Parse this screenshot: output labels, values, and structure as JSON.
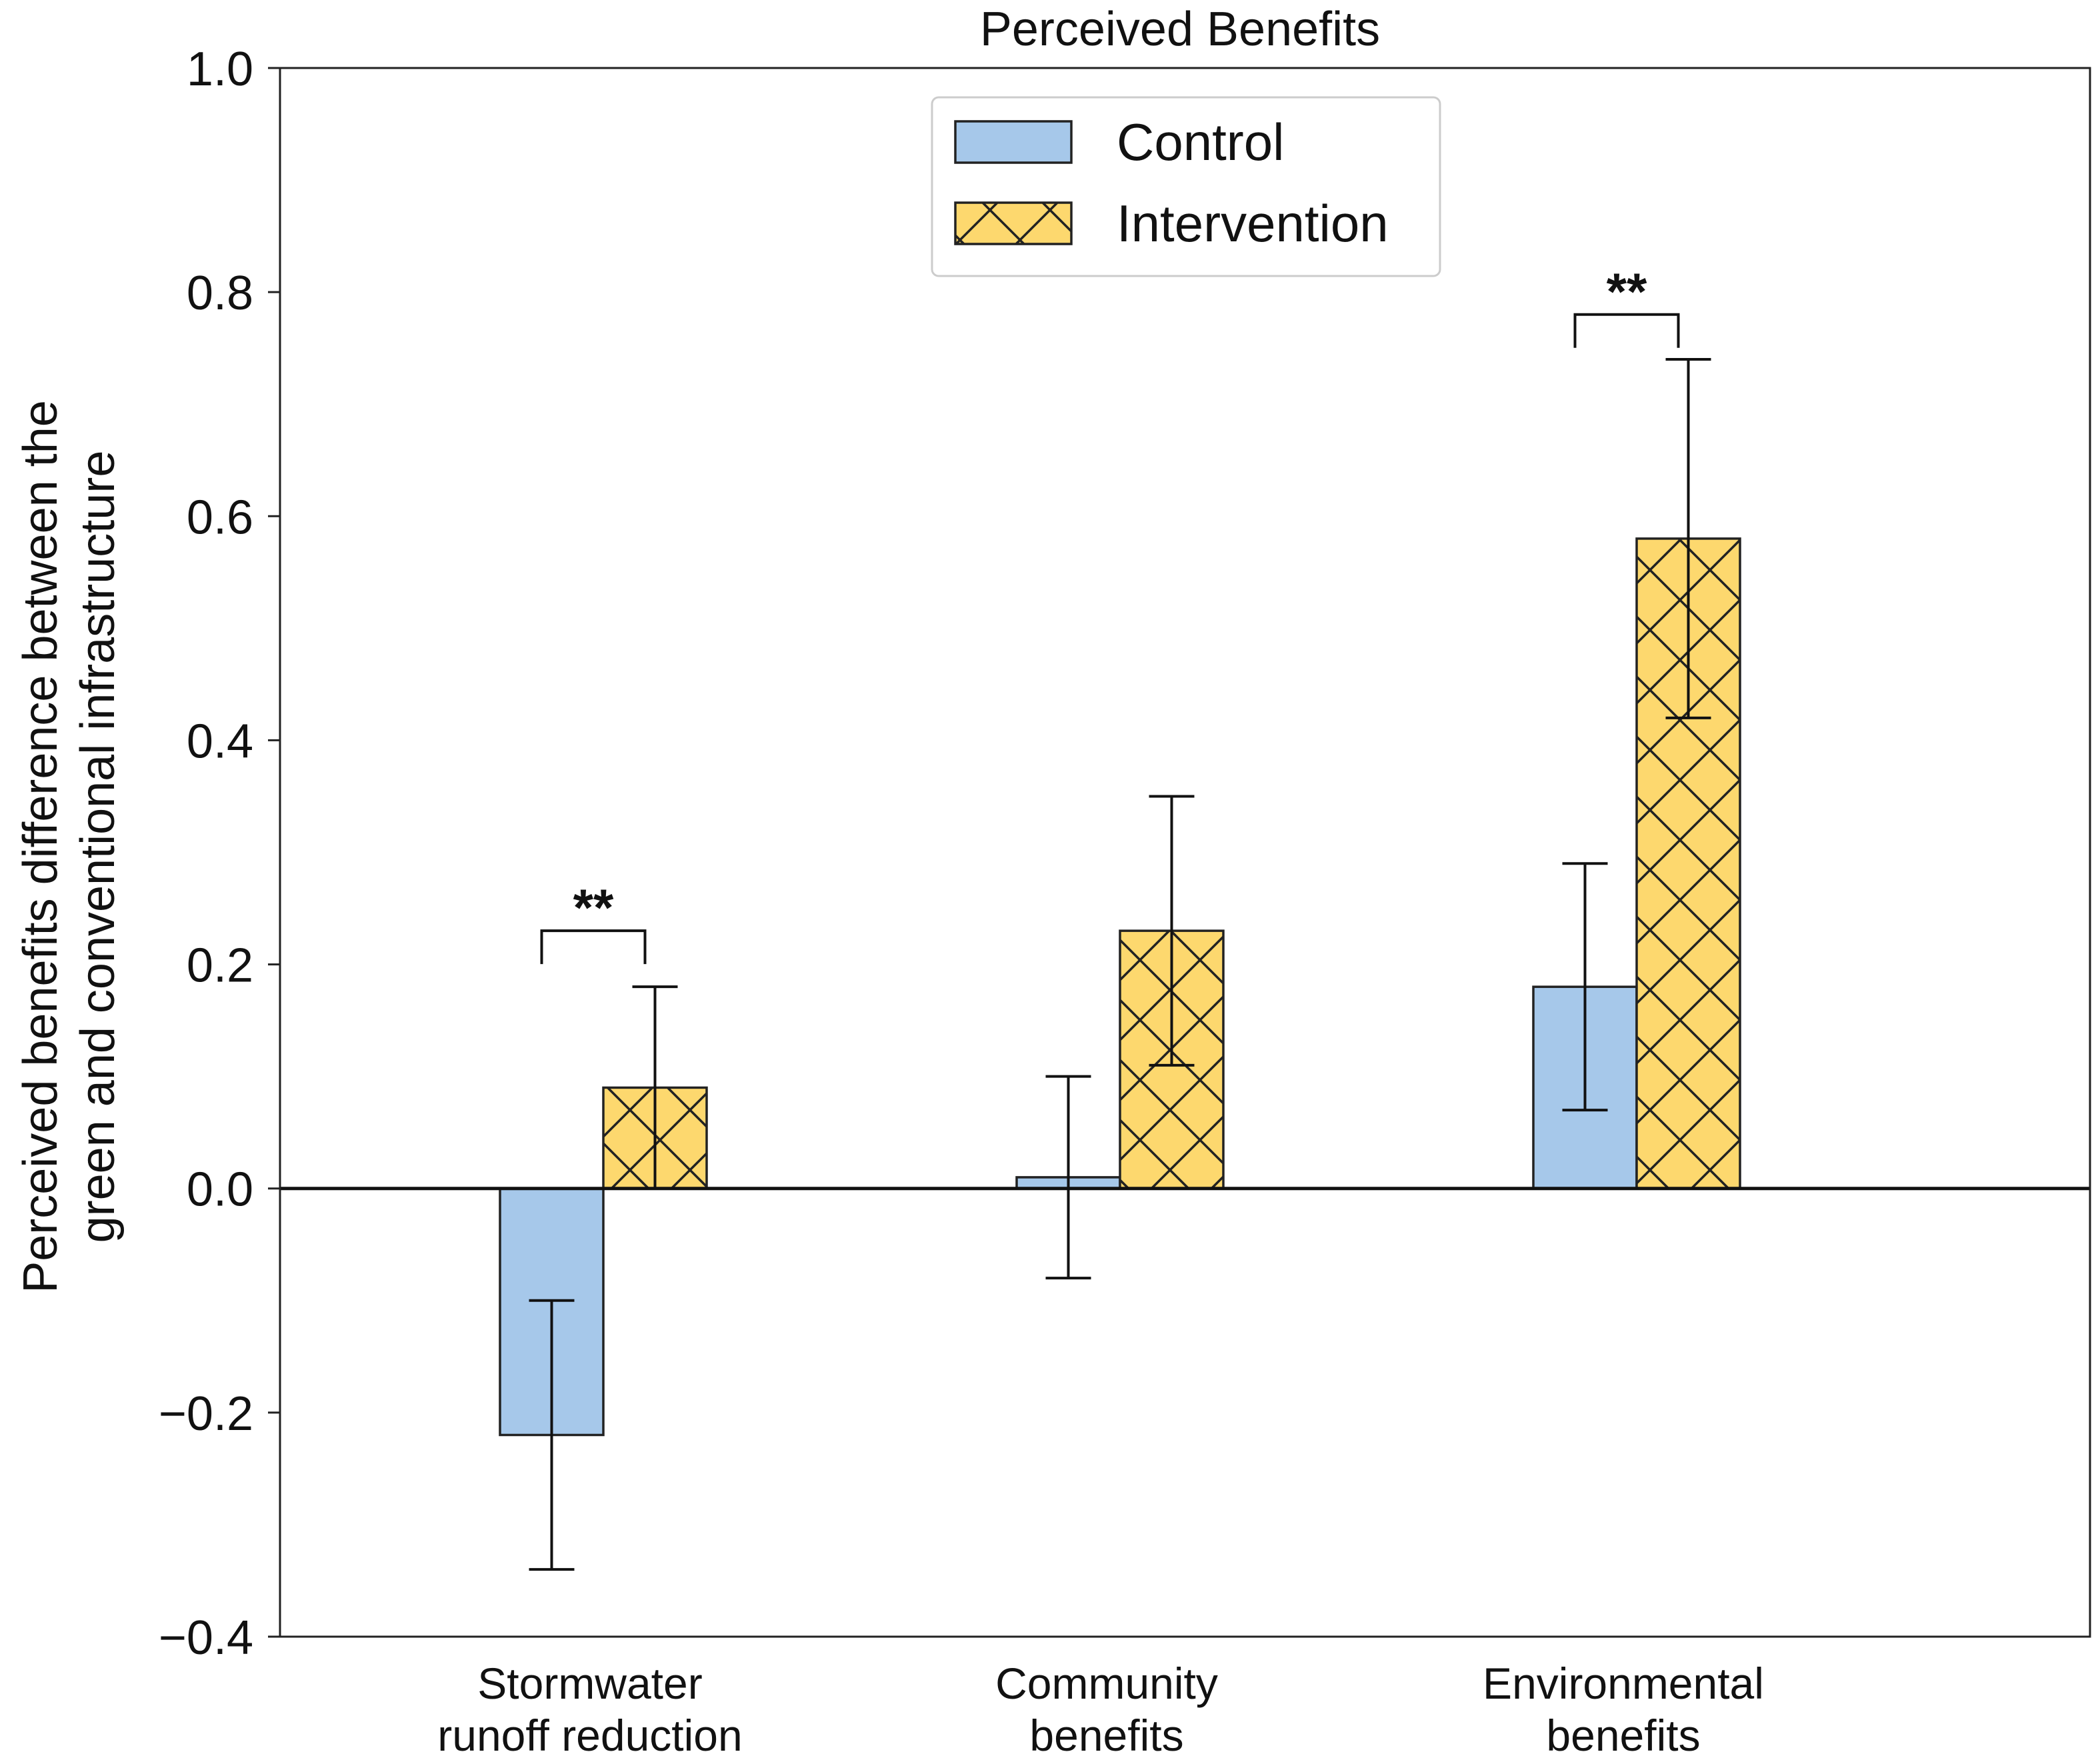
{
  "chart_data": {
    "type": "bar",
    "title": "Perceived Benefits",
    "ylabel_lines": [
      "Perceived benefits difference between the",
      "green and conventional infrastructure"
    ],
    "xlabel": "",
    "ylim": [
      -0.4,
      1.0
    ],
    "yticks": [
      1.0,
      0.8,
      0.6,
      0.4,
      0.2,
      0.0,
      -0.2,
      -0.4
    ],
    "ytick_labels": [
      "1.0",
      "0.8",
      "0.6",
      "0.4",
      "0.2",
      "0.0",
      "−0.2",
      "−0.4"
    ],
    "categories": [
      [
        "Stormwater",
        "runoff reduction"
      ],
      [
        "Community",
        "benefits"
      ],
      [
        "Environmental",
        "benefits"
      ]
    ],
    "series": [
      {
        "name": "Control",
        "color": "#a6c8ea",
        "hatch": "none",
        "values": [
          -0.22,
          0.01,
          0.18
        ],
        "err_low": [
          -0.34,
          -0.08,
          0.07
        ],
        "err_high": [
          -0.1,
          0.1,
          0.29
        ]
      },
      {
        "name": "Intervention",
        "color": "#fdd86e",
        "hatch": "cross",
        "values": [
          0.09,
          0.23,
          0.58
        ],
        "err_low": [
          0.0,
          0.11,
          0.42
        ],
        "err_high": [
          0.18,
          0.35,
          0.74
        ]
      }
    ],
    "significance": [
      {
        "category_index": 0,
        "label": "**",
        "y": 0.23
      },
      {
        "category_index": 2,
        "label": "**",
        "y": 0.78
      }
    ],
    "legend": {
      "position": "top-center"
    },
    "zero_line": true,
    "grid": false
  }
}
